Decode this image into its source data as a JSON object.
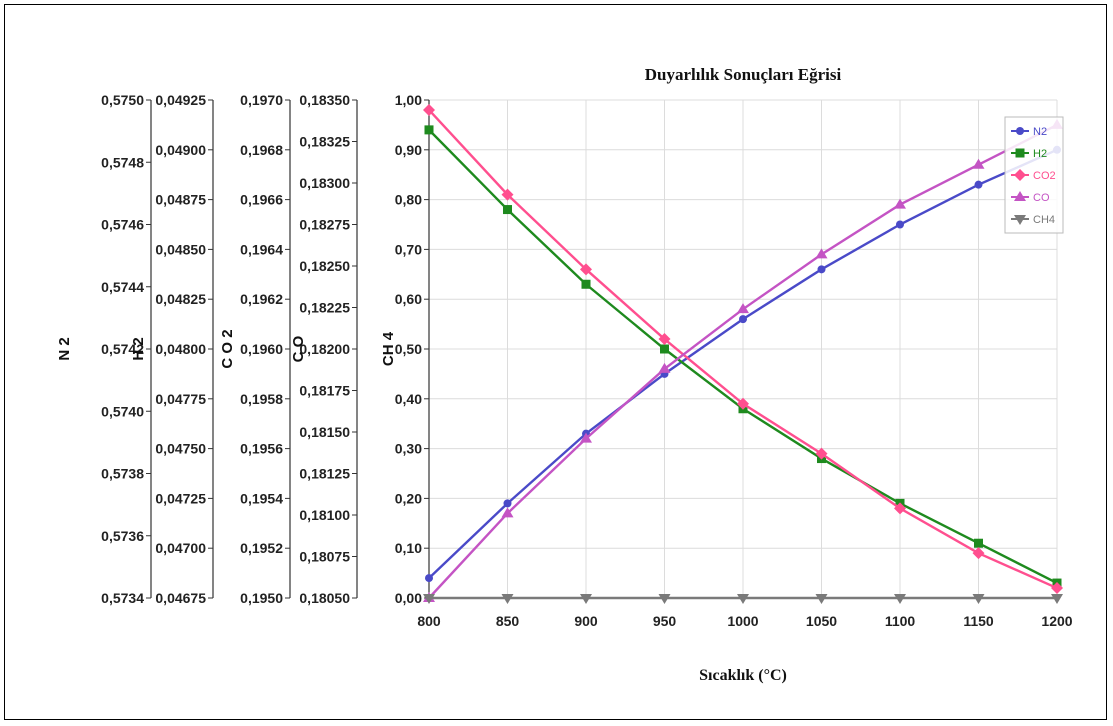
{
  "chart_data": {
    "type": "line",
    "title": "Duyarlılık Sonuçları Eğrisi",
    "xlabel": "Sıcaklık (°C)",
    "x": [
      800,
      850,
      900,
      950,
      1000,
      1050,
      1100,
      1150,
      1200
    ],
    "xlim": [
      800,
      1200
    ],
    "grid": true,
    "legend_position": "top-right",
    "primary_axis": {
      "label": "CH 4",
      "ylim": [
        0,
        1
      ],
      "ticks": [
        "0,00",
        "0,10",
        "0,20",
        "0,30",
        "0,40",
        "0,50",
        "0,60",
        "0,70",
        "0,80",
        "0,90",
        "1,00"
      ]
    },
    "secondary_axes": [
      {
        "label": "N 2",
        "ticks": [
          "0,5734",
          "0,5736",
          "0,5738",
          "0,5740",
          "0,5742",
          "0,5744",
          "0,5746",
          "0,5748",
          "0,5750"
        ]
      },
      {
        "label": "H 2",
        "ticks": [
          "0,04675",
          "0,04700",
          "0,04725",
          "0,04750",
          "0,04775",
          "0,04800",
          "0,04825",
          "0,04850",
          "0,04875",
          "0,04900",
          "0,04925"
        ]
      },
      {
        "label": "C O 2",
        "ticks": [
          "0,1950",
          "0,1952",
          "0,1954",
          "0,1956",
          "0,1958",
          "0,1960",
          "0,1962",
          "0,1964",
          "0,1966",
          "0,1968",
          "0,1970"
        ]
      },
      {
        "label": "C O",
        "ticks": [
          "0,18050",
          "0,18075",
          "0,18100",
          "0,18125",
          "0,18150",
          "0,18175",
          "0,18200",
          "0,18225",
          "0,18250",
          "0,18275",
          "0,18300",
          "0,18325",
          "0,18350"
        ]
      }
    ],
    "series": [
      {
        "name": "N2",
        "color": "#4a4ac8",
        "marker": "circle",
        "values": [
          0.04,
          0.19,
          0.33,
          0.45,
          0.56,
          0.66,
          0.75,
          0.83,
          0.9
        ]
      },
      {
        "name": "H2",
        "color": "#1e8a1e",
        "marker": "square",
        "values": [
          0.94,
          0.78,
          0.63,
          0.5,
          0.38,
          0.28,
          0.19,
          0.11,
          0.03
        ]
      },
      {
        "name": "CO2",
        "color": "#ff4f8f",
        "marker": "diamond",
        "values": [
          0.98,
          0.81,
          0.66,
          0.52,
          0.39,
          0.29,
          0.18,
          0.09,
          0.02
        ]
      },
      {
        "name": "CO",
        "color": "#c454c4",
        "marker": "triangle-up",
        "values": [
          0.0,
          0.17,
          0.32,
          0.46,
          0.58,
          0.69,
          0.79,
          0.87,
          0.95
        ]
      },
      {
        "name": "CH4",
        "color": "#7a7a7a",
        "marker": "triangle-down",
        "values": [
          0,
          0,
          0,
          0,
          0,
          0,
          0,
          0,
          0
        ]
      }
    ]
  }
}
